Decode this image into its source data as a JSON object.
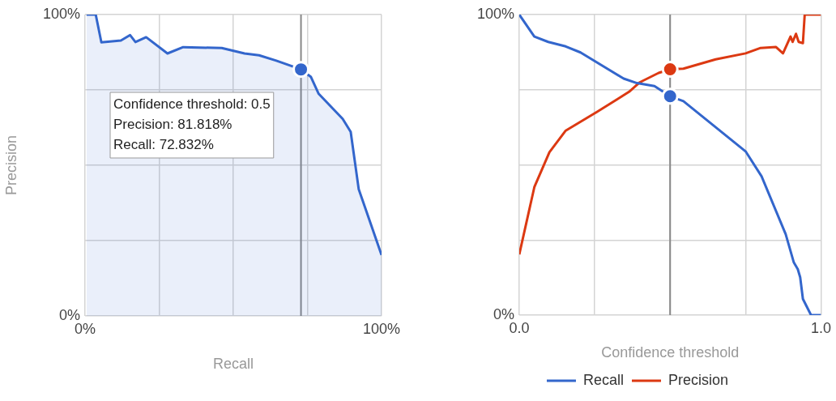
{
  "chart_data": [
    {
      "type": "area",
      "xlabel": "Recall",
      "ylabel": "Precision",
      "xlim": [
        0,
        100
      ],
      "ylim": [
        0,
        100
      ],
      "xticks": [
        {
          "value": 0,
          "label": "0%"
        },
        {
          "value": 25,
          "label": null
        },
        {
          "value": 50,
          "label": null
        },
        {
          "value": 75,
          "label": null
        },
        {
          "value": 100,
          "label": "100%"
        }
      ],
      "yticks": [
        {
          "value": 0,
          "label": "0%"
        },
        {
          "value": 25,
          "label": null
        },
        {
          "value": 50,
          "label": null
        },
        {
          "value": 75,
          "label": null
        },
        {
          "value": 100,
          "label": "100%"
        }
      ],
      "grid": true,
      "legend": false,
      "series": [
        {
          "color": "#3366cc",
          "x": [
            0.5,
            3.6,
            5.5,
            12.1,
            15.2,
            17.0,
            20.6,
            27.8,
            33.1,
            46.1,
            53.8,
            58.7,
            64.5,
            72.832,
            76.2,
            78.8,
            86.9,
            89.6,
            92.3,
            100
          ],
          "values": [
            100,
            100,
            90.8,
            91.4,
            93.2,
            90.9,
            92.5,
            87.1,
            89.2,
            88.9,
            87.1,
            86.5,
            84.7,
            81.818,
            79.3,
            73.7,
            65.4,
            61.1,
            42.1,
            20.2
          ]
        },
        {
          "type": "scatter",
          "color": "#3366cc",
          "x": [
            72.832
          ],
          "values": [
            81.818
          ]
        }
      ],
      "ref_lines": [
        {
          "axis": "x",
          "value": 72.832,
          "color": "#888888"
        }
      ],
      "annotations": [
        "Confidence threshold: 0.5",
        "Precision: 81.818%",
        "Recall: 72.832%"
      ]
    },
    {
      "type": "line",
      "xlabel": "Confidence threshold",
      "xlim": [
        0,
        1
      ],
      "ylim": [
        0,
        100
      ],
      "xticks": [
        {
          "value": 0,
          "label": "0.0"
        },
        {
          "value": 0.25,
          "label": null
        },
        {
          "value": 0.5,
          "label": null
        },
        {
          "value": 0.75,
          "label": null
        },
        {
          "value": 1,
          "label": "1.0"
        }
      ],
      "yticks": [
        {
          "value": 0,
          "label": "0%"
        },
        {
          "value": 25,
          "label": null
        },
        {
          "value": 50,
          "label": null
        },
        {
          "value": 75,
          "label": null
        },
        {
          "value": 100,
          "label": "100%"
        }
      ],
      "grid": true,
      "legend": "bottom",
      "series": [
        {
          "name": "Recall",
          "color": "#3366cc",
          "x": [
            0,
            0.05,
            0.096,
            0.154,
            0.203,
            0.346,
            0.39,
            0.448,
            0.5,
            0.544,
            0.75,
            0.803,
            0.883,
            0.91,
            0.923,
            0.931,
            0.94,
            0.967,
            1
          ],
          "values": [
            100,
            92.7,
            90.9,
            89.4,
            87.4,
            78.7,
            77.2,
            76.2,
            72.832,
            71.2,
            54.5,
            46.2,
            26.9,
            17.5,
            15.3,
            12.6,
            5.4,
            0,
            0
          ]
        },
        {
          "name": "Precision",
          "color": "#dc3912",
          "x": [
            0,
            0.05,
            0.1,
            0.154,
            0.257,
            0.364,
            0.4,
            0.462,
            0.5,
            0.544,
            0.651,
            0.75,
            0.8,
            0.851,
            0.874,
            0.899,
            0.906,
            0.917,
            0.926,
            0.94,
            0.946,
            1
          ],
          "values": [
            20.2,
            42.6,
            54.2,
            61.4,
            67.6,
            74.3,
            77.5,
            80.6,
            81.818,
            82.0,
            85.1,
            87.1,
            88.9,
            89.2,
            87.1,
            92.7,
            90.9,
            93.6,
            90.9,
            90.5,
            100,
            100
          ]
        },
        {
          "type": "scatter",
          "color": "#3366cc",
          "x": [
            0.5
          ],
          "values": [
            72.832
          ]
        },
        {
          "type": "scatter",
          "color": "#dc3912",
          "x": [
            0.5
          ],
          "values": [
            81.818
          ]
        }
      ],
      "ref_lines": [
        {
          "axis": "x",
          "value": 0.5,
          "color": "#888888"
        }
      ]
    }
  ]
}
